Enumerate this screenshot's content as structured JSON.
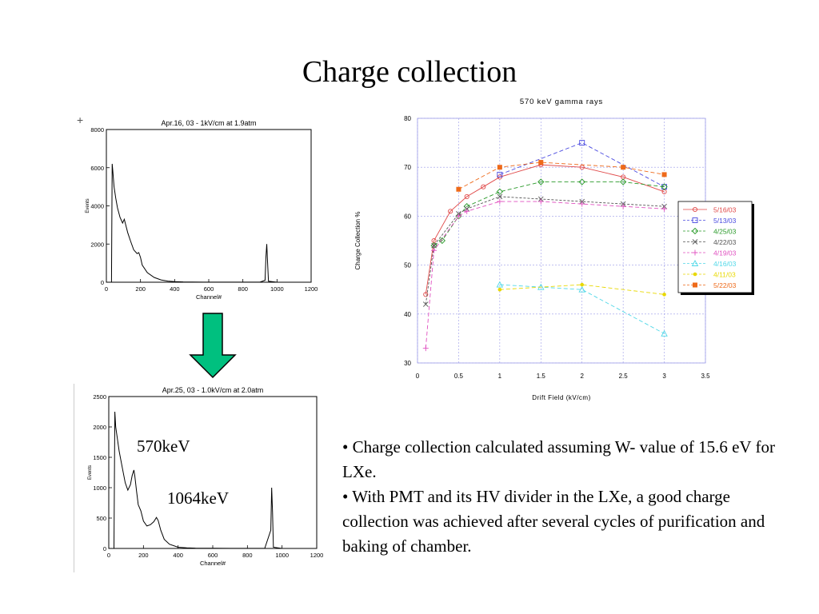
{
  "slide": {
    "title": "Charge collection",
    "bullets": [
      "• Charge collection calculated  assuming W- value of 15.6 eV for LXe.",
      "• With PMT and its HV divider in the LXe, a good charge collection was achieved after several cycles of purification and baking of chamber."
    ],
    "arrow_color": "#00c07f",
    "plus_mark": "+"
  },
  "chart_data": [
    {
      "type": "line",
      "title": "Apr.16, 03 - 1kV/cm at 1.9atm",
      "xlabel": "Channel#",
      "ylabel": "Events",
      "xlim": [
        0,
        1200
      ],
      "ylim": [
        0,
        8000
      ],
      "x_ticks": [
        0,
        200,
        400,
        600,
        800,
        1000,
        1200
      ],
      "y_ticks": [
        0,
        2000,
        4000,
        6000,
        8000
      ],
      "series": [
        {
          "x": [
            0,
            30,
            34,
            38,
            45,
            55,
            65,
            80,
            95,
            105,
            115,
            125,
            140,
            160,
            180,
            190,
            200,
            210,
            240,
            280,
            320,
            360,
            400,
            450,
            500,
            600,
            700,
            800,
            900,
            930,
            935,
            940,
            945,
            950,
            1000,
            1100,
            1200
          ],
          "y": [
            0,
            0,
            6200,
            5800,
            5000,
            4400,
            3900,
            3400,
            3100,
            3300,
            2950,
            2600,
            2200,
            1700,
            1500,
            1550,
            1300,
            900,
            500,
            250,
            120,
            60,
            30,
            15,
            10,
            5,
            5,
            5,
            5,
            100,
            1300,
            2000,
            1000,
            50,
            0,
            0,
            0
          ]
        }
      ]
    },
    {
      "type": "line",
      "title": "Apr.25, 03 - 1.0kV/cm at 2.0atm",
      "xlabel": "Channel#",
      "ylabel": "Events",
      "xlim": [
        0,
        1200
      ],
      "ylim": [
        0,
        2500
      ],
      "x_ticks": [
        0,
        200,
        400,
        600,
        800,
        1000,
        1200
      ],
      "y_ticks": [
        0,
        500,
        1000,
        1500,
        2000,
        2500
      ],
      "annotations": [
        "570keV",
        "1064keV"
      ],
      "series": [
        {
          "x": [
            0,
            30,
            35,
            40,
            50,
            60,
            70,
            80,
            95,
            110,
            125,
            135,
            145,
            150,
            160,
            170,
            185,
            200,
            220,
            240,
            260,
            275,
            285,
            300,
            320,
            350,
            400,
            450,
            500,
            600,
            700,
            800,
            900,
            935,
            940,
            945,
            950,
            1000,
            1100,
            1200
          ],
          "y": [
            0,
            0,
            2250,
            2000,
            1800,
            1600,
            1450,
            1300,
            1080,
            960,
            1050,
            1200,
            1290,
            1200,
            950,
            720,
            620,
            450,
            370,
            390,
            440,
            510,
            460,
            300,
            150,
            70,
            20,
            10,
            5,
            3,
            2,
            2,
            2,
            300,
            1000,
            600,
            20,
            0,
            0,
            0
          ]
        }
      ]
    },
    {
      "type": "line",
      "title": "570 keV gamma rays",
      "xlabel": "Drift Field (kV/cm)",
      "ylabel": "Charge Collection %",
      "xlim": [
        0,
        3.5
      ],
      "ylim": [
        30,
        80
      ],
      "x_ticks": [
        "0",
        "0.5",
        "1",
        "1.5",
        "2",
        "2.5",
        "3",
        "3.5"
      ],
      "y_ticks": [
        "30",
        "40",
        "50",
        "60",
        "70",
        "80"
      ],
      "grid": true,
      "legend": "right",
      "series": [
        {
          "name": "5/16/03",
          "color": "#e04848",
          "marker": "circle",
          "x": [
            0.1,
            0.2,
            0.4,
            0.6,
            0.8,
            1.0,
            1.5,
            2.0,
            2.5,
            3.0
          ],
          "y": [
            44,
            55,
            61,
            64,
            66,
            68,
            70.5,
            70,
            68,
            65
          ]
        },
        {
          "name": "5/13/03",
          "color": "#4a4ae0",
          "marker": "square",
          "x": [
            1.0,
            2.0,
            3.0
          ],
          "y": [
            68.5,
            75,
            66
          ]
        },
        {
          "name": "4/25/03",
          "color": "#2a9a2a",
          "marker": "diamond",
          "x": [
            0.2,
            0.3,
            0.5,
            0.6,
            1.0,
            1.5,
            2.0,
            2.5,
            3.0
          ],
          "y": [
            54,
            55,
            60,
            62,
            65,
            67,
            67,
            67,
            66
          ]
        },
        {
          "name": "4/22/03",
          "color": "#555555",
          "marker": "x",
          "x": [
            0.1,
            0.2,
            0.5,
            0.6,
            1.0,
            1.5,
            2.0,
            2.5,
            3.0
          ],
          "y": [
            42,
            54,
            60.5,
            61.5,
            64,
            63.5,
            63,
            62.5,
            62
          ]
        },
        {
          "name": "4/19/03",
          "color": "#e050c0",
          "marker": "plus",
          "x": [
            0.1,
            0.2,
            0.5,
            0.6,
            1.0,
            1.5,
            2.0,
            2.5,
            3.0
          ],
          "y": [
            33,
            53,
            60,
            61,
            63,
            63,
            62.5,
            62,
            61.5
          ]
        },
        {
          "name": "4/16/03",
          "color": "#50d8e8",
          "marker": "triangle",
          "x": [
            1.0,
            1.5,
            2.0,
            3.0
          ],
          "y": [
            46,
            45.5,
            45,
            36
          ]
        },
        {
          "name": "4/11/03",
          "color": "#e8d800",
          "marker": "dot",
          "x": [
            1.0,
            2.0,
            3.0
          ],
          "y": [
            45,
            46,
            44
          ]
        },
        {
          "name": "5/22/03",
          "color": "#ee6a1a",
          "marker": "filled-square",
          "x": [
            0.5,
            1.0,
            1.5,
            2.5,
            3.0
          ],
          "y": [
            65.5,
            70,
            71,
            70,
            68.5
          ]
        }
      ]
    }
  ]
}
